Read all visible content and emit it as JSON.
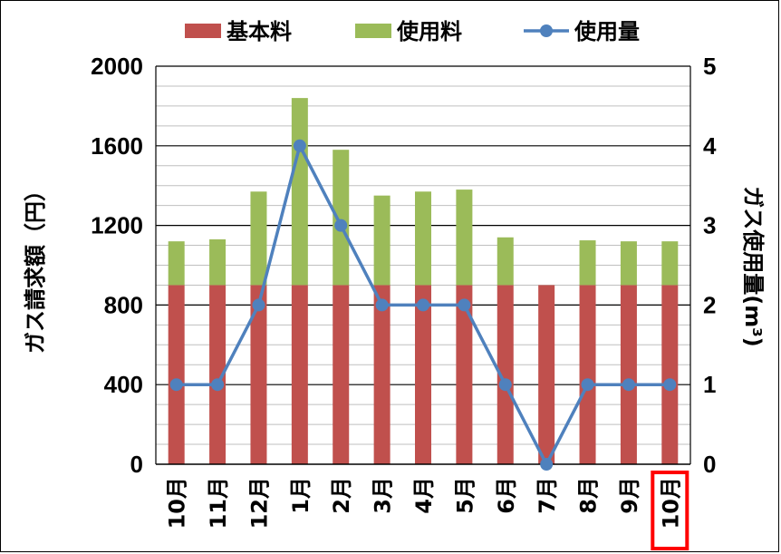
{
  "chart_data": {
    "type": "bar",
    "stacked": true,
    "categories": [
      "10月",
      "11月",
      "12月",
      "1月",
      "2月",
      "3月",
      "4月",
      "5月",
      "6月",
      "7月",
      "8月",
      "9月",
      "10月"
    ],
    "series": [
      {
        "name": "基本料",
        "axis": "left",
        "color": "#c0504d",
        "values": [
          900,
          900,
          900,
          900,
          900,
          900,
          900,
          900,
          900,
          900,
          900,
          900,
          900
        ]
      },
      {
        "name": "使用料",
        "axis": "left",
        "color": "#9bbb59",
        "values": [
          220,
          230,
          470,
          940,
          680,
          450,
          470,
          480,
          240,
          0,
          225,
          220,
          220
        ]
      },
      {
        "name": "使用量",
        "axis": "right",
        "type": "line",
        "color": "#4f81bd",
        "values": [
          1,
          1,
          2,
          4,
          3,
          2,
          2,
          2,
          1,
          0,
          1,
          1,
          1
        ]
      }
    ],
    "ylabel": "ガス請求額（円）",
    "ylabel_right": "ガス使用量(m³)",
    "ylim": [
      0,
      2000
    ],
    "yticks": [
      0,
      400,
      800,
      1200,
      1600,
      2000
    ],
    "ylim_right": [
      0,
      5
    ],
    "yticks_right": [
      0,
      1,
      2,
      3,
      4,
      5
    ],
    "grid": true,
    "legend": "top",
    "highlighted_category_index": 12,
    "highlight_color": "#ff0000"
  }
}
